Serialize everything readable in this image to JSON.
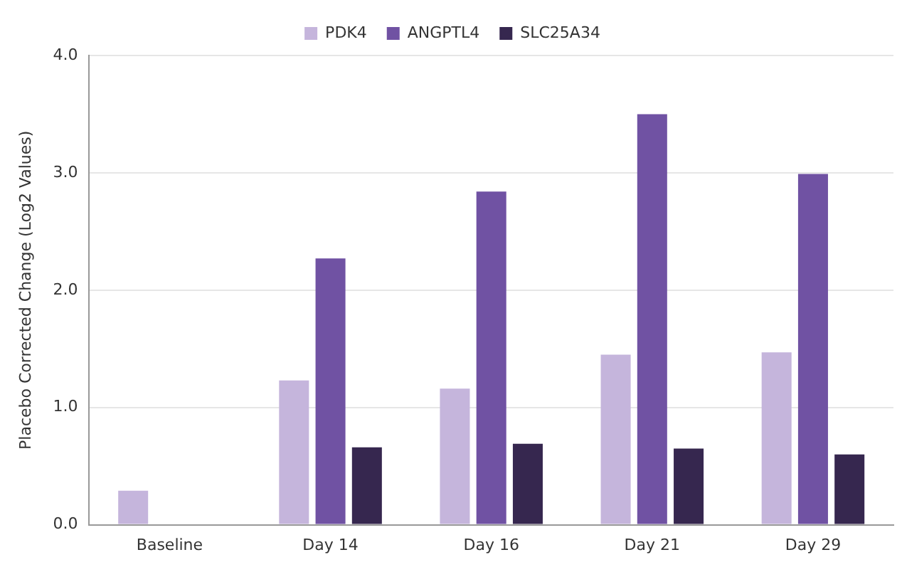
{
  "chart_data": {
    "type": "bar",
    "ylabel": "Placebo Corrected Change (Log2 Values)",
    "categories": [
      "Baseline",
      "Day 14",
      "Day 16",
      "Day 21",
      "Day 29"
    ],
    "series": [
      {
        "name": "PDK4",
        "color": "#c5b5dc",
        "values": [
          0.29,
          1.23,
          1.16,
          1.45,
          1.47
        ]
      },
      {
        "name": "ANGPTL4",
        "color": "#7052a3",
        "values": [
          null,
          2.27,
          2.84,
          3.5,
          2.99
        ]
      },
      {
        "name": "SLC25A34",
        "color": "#36274f",
        "values": [
          null,
          0.66,
          0.69,
          0.65,
          0.6
        ]
      }
    ],
    "ylim": [
      0,
      4
    ],
    "yticks": [
      {
        "value": 0,
        "label": "0.0"
      },
      {
        "value": 1,
        "label": "1.0"
      },
      {
        "value": 2,
        "label": "2.0"
      },
      {
        "value": 3,
        "label": "3.0"
      },
      {
        "value": 4,
        "label": "4.0"
      }
    ],
    "grid": "y",
    "legend": "top"
  }
}
